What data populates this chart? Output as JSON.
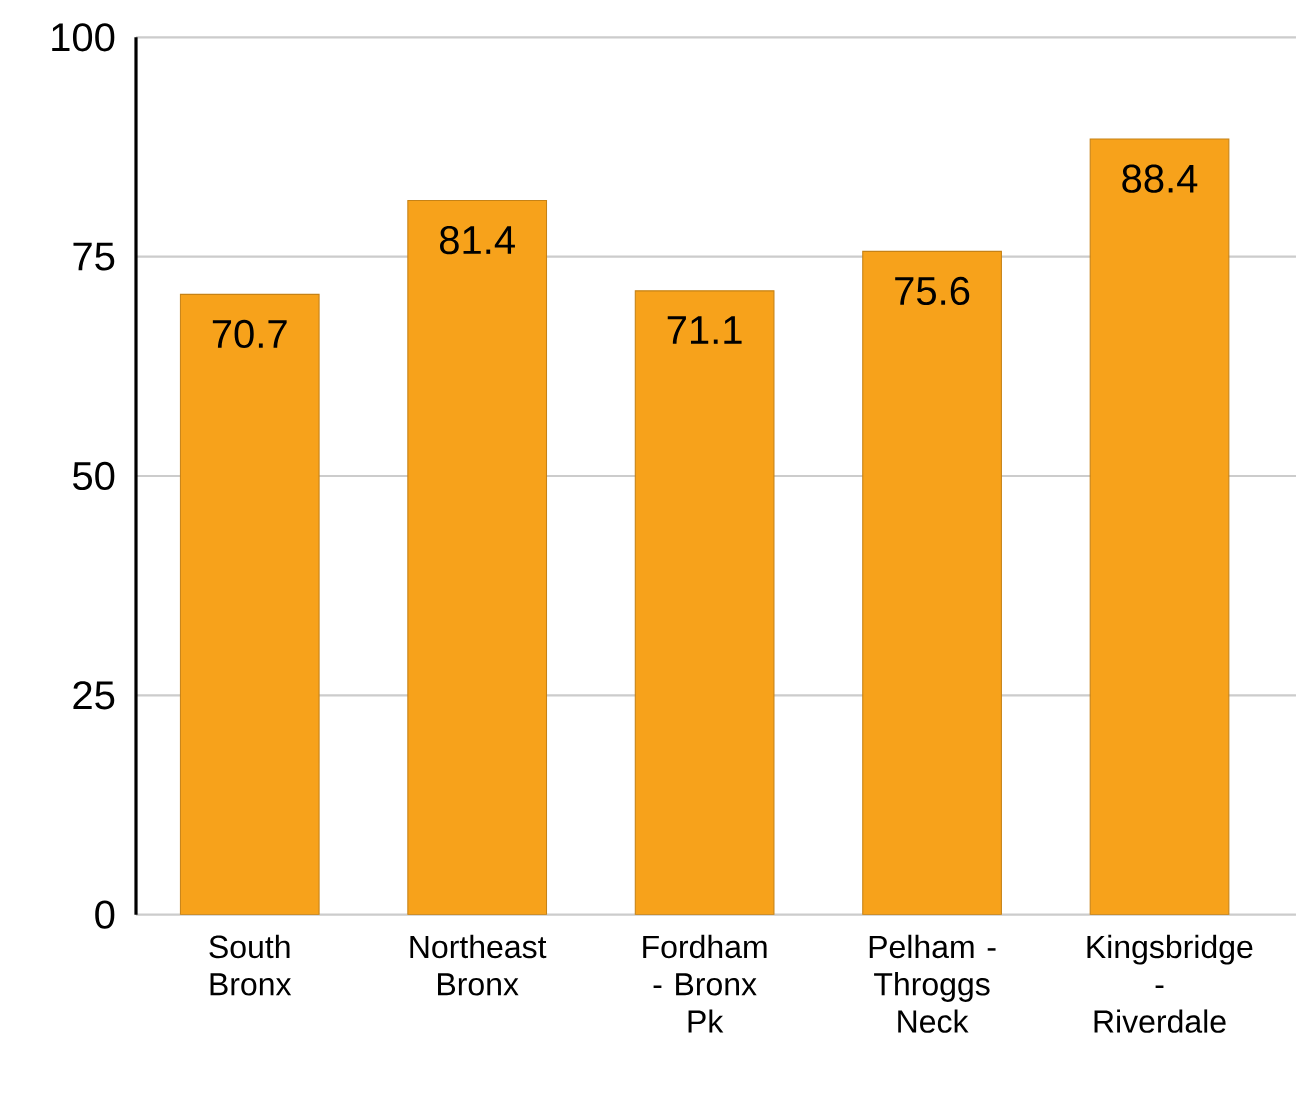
{
  "chart_data": {
    "type": "bar",
    "categories": [
      "South Bronx",
      "Northeast Bronx",
      "Fordham - Bronx Pk",
      "Pelham - Throggs Neck",
      "Kingsbridge - Riverdale"
    ],
    "values": [
      70.7,
      81.4,
      71.1,
      75.6,
      88.4
    ],
    "color": "#f7a21b",
    "ylim": [
      0,
      100
    ],
    "yticks": [
      0,
      25,
      50,
      75,
      100
    ],
    "grid": "y",
    "data_labels": true
  }
}
